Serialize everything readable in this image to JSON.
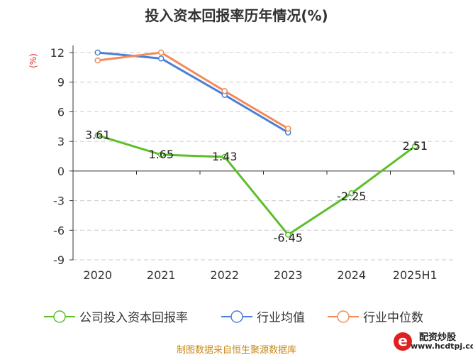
{
  "chart_data": {
    "type": "line",
    "title": "投入资本回报率历年情况(%)",
    "ylabel": "(%)",
    "categories": [
      "2020",
      "2021",
      "2022",
      "2023",
      "2024",
      "2025H1"
    ],
    "ylim": [
      -9,
      12
    ],
    "yticks": [
      12,
      9,
      6,
      3,
      0,
      -3,
      -6,
      -9
    ],
    "grid": true,
    "legend_position": "bottom",
    "series": [
      {
        "name": "公司投入资本回报率",
        "color": "#5cbf2a",
        "values": [
          3.61,
          1.65,
          1.43,
          -6.45,
          -2.25,
          2.51
        ],
        "labels": [
          "3.61",
          "1.65",
          "1.43",
          "-6.45",
          "-2.25",
          "2.51"
        ]
      },
      {
        "name": "行业均值",
        "color": "#4a7fd6",
        "values": [
          12.0,
          11.4,
          7.7,
          3.9,
          null,
          null
        ]
      },
      {
        "name": "行业中位数",
        "color": "#f28b5a",
        "values": [
          11.2,
          12.0,
          8.1,
          4.3,
          null,
          null
        ]
      }
    ]
  },
  "source": "制图数据来自恒生聚源数据库",
  "logo": {
    "brand": "配资炒股",
    "url": "www.hcdtpj.com"
  }
}
